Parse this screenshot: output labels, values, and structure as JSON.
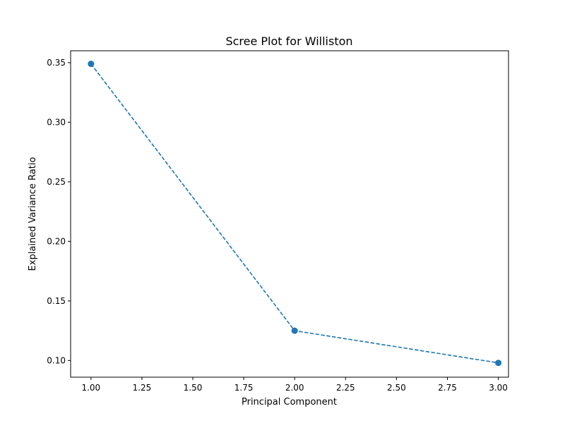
{
  "chart_data": {
    "type": "line",
    "title": "Scree Plot for Williston",
    "xlabel": "Principal Component",
    "ylabel": "Explained Variance Ratio",
    "xlim": [
      0.9,
      3.05
    ],
    "ylim": [
      0.086,
      0.36
    ],
    "xticks": [
      1.0,
      1.25,
      1.5,
      1.75,
      2.0,
      2.25,
      2.5,
      2.75,
      3.0
    ],
    "xtick_labels": [
      "1.00",
      "1.25",
      "1.50",
      "1.75",
      "2.00",
      "2.25",
      "2.50",
      "2.75",
      "3.00"
    ],
    "yticks": [
      0.1,
      0.15,
      0.2,
      0.25,
      0.3,
      0.35
    ],
    "ytick_labels": [
      "0.10",
      "0.15",
      "0.20",
      "0.25",
      "0.30",
      "0.35"
    ],
    "grid": false,
    "series": [
      {
        "x": [
          1,
          2,
          3
        ],
        "values": [
          0.349,
          0.125,
          0.098
        ],
        "color": "#1f77b4",
        "line_style": "dashed",
        "marker": "circle"
      }
    ]
  }
}
